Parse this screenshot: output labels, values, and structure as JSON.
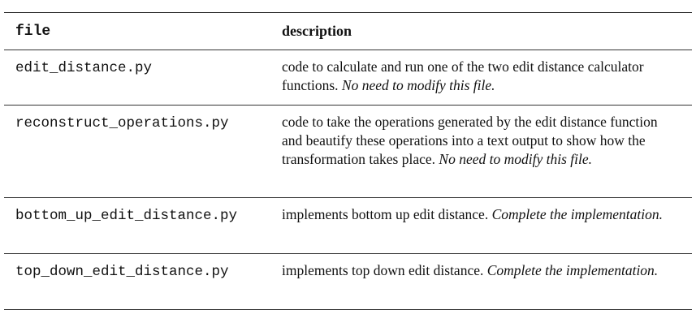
{
  "table": {
    "headers": {
      "file": "file",
      "description": "description"
    },
    "rows": [
      {
        "file": "edit_distance.py",
        "desc": "code to calculate and run one of the two edit distance calculator functions.",
        "note": "No need to modify this file."
      },
      {
        "file": "reconstruct_operations.py",
        "desc": "code to take the operations generated by the edit distance function and beautify these operations into a text output to show how the transformation takes place.",
        "note": "No need to modify this file."
      },
      {
        "file": "bottom_up_edit_distance.py",
        "desc": "implements bottom up edit distance.",
        "note": "Complete the implementation."
      },
      {
        "file": "top_down_edit_distance.py",
        "desc": "implements top down edit distance.",
        "note": "Complete the implementation."
      }
    ]
  }
}
